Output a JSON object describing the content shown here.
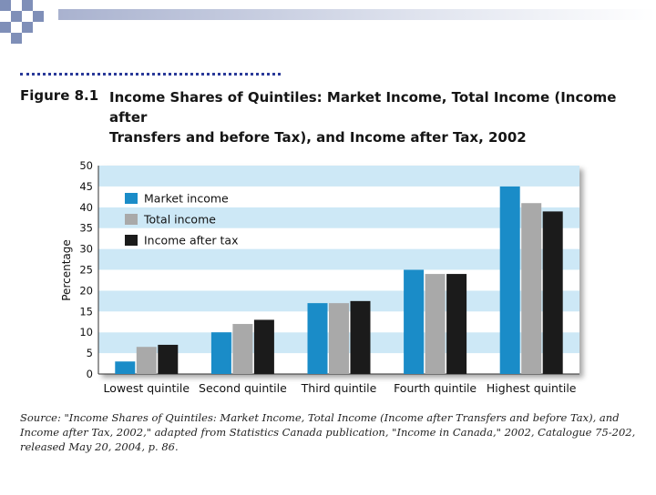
{
  "figure": {
    "label": "Figure 8.1",
    "title_line1": "Income Shares of Quintiles: Market Income, Total Income (Income after",
    "title_line2": "Transfers and before Tax), and Income after Tax, 2002"
  },
  "chart_data": {
    "type": "bar",
    "categories": [
      "Lowest quintile",
      "Second quintile",
      "Third quintile",
      "Fourth quintile",
      "Highest quintile"
    ],
    "series": [
      {
        "name": "Market income",
        "color": "#1a8cc8",
        "values": [
          3,
          10,
          17,
          25,
          45
        ]
      },
      {
        "name": "Total income",
        "color": "#a9a9a9",
        "values": [
          6.5,
          12,
          17,
          24,
          41
        ]
      },
      {
        "name": "Income after tax",
        "color": "#1b1b1b",
        "values": [
          7,
          13,
          17.5,
          24,
          39
        ]
      }
    ],
    "ylabel": "Percentage",
    "xlabel": "",
    "ylim": [
      0,
      50
    ],
    "yticks": [
      0,
      5,
      10,
      15,
      20,
      25,
      30,
      35,
      40,
      45,
      50
    ],
    "stripe_colors": [
      "#cde8f6",
      "#ffffff"
    ],
    "legend_position": "top-left"
  },
  "source": {
    "text": "Source: \"Income Shares of Quintiles: Market Income, Total Income (Income after Transfers and before Tax), and Income after Tax, 2002,\" adapted from Statistics Canada publication, \"Income in Canada,\" 2002, Catalogue 75-202, released May 20, 2004, p. 86."
  }
}
